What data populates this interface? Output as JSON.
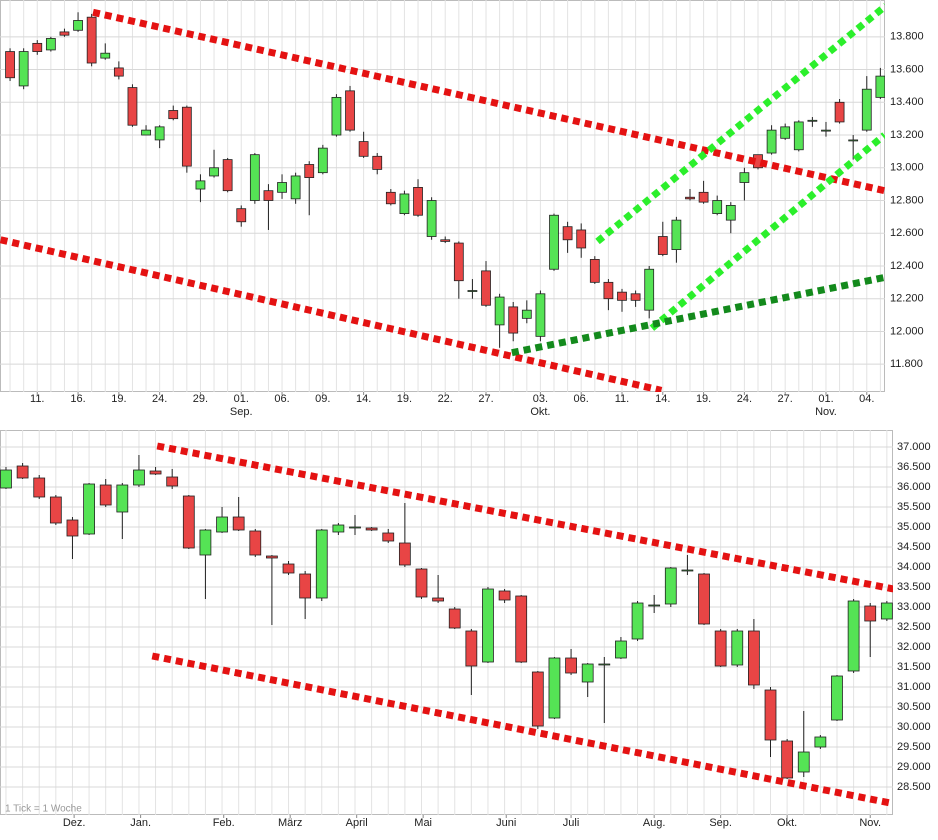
{
  "chart_data": [
    {
      "type": "candlestick",
      "up_color": "#55e355",
      "down_color": "#e84545",
      "open": [
        13710,
        13500,
        13760,
        13720,
        13830,
        13840,
        13920,
        13670,
        13610,
        13490,
        13200,
        13170,
        13350,
        13370,
        12870,
        12950,
        13050,
        12750,
        12800,
        12860,
        12850,
        12810,
        13020,
        12970,
        13200,
        13470,
        13160,
        13070,
        12850,
        12720,
        12880,
        12580,
        12560,
        12540,
        12250,
        12370,
        12040,
        12150,
        12080,
        11970,
        12380,
        12640,
        12620,
        12440,
        12300,
        12240,
        12230,
        12130,
        12580,
        12500,
        12820,
        12850,
        12720,
        12680,
        12910,
        13080,
        13090,
        13180,
        13110,
        13290,
        13230,
        13400,
        13170,
        13230,
        13430
      ],
      "high": [
        13730,
        13730,
        13780,
        13800,
        13850,
        13950,
        13940,
        13760,
        13650,
        13510,
        13260,
        13260,
        13380,
        13380,
        12960,
        13110,
        13060,
        12770,
        13090,
        12900,
        12960,
        12970,
        13040,
        13140,
        13450,
        13500,
        13220,
        13090,
        12870,
        12860,
        12930,
        12820,
        12580,
        12550,
        12320,
        12430,
        12230,
        12180,
        12190,
        12250,
        12720,
        12670,
        12660,
        12460,
        12320,
        12260,
        12250,
        12400,
        12670,
        12700,
        12870,
        12920,
        12830,
        12790,
        13000,
        13080,
        13260,
        13270,
        13290,
        13310,
        13280,
        13420,
        13200,
        13560,
        13610
      ],
      "low": [
        13530,
        13480,
        13690,
        13710,
        13800,
        13830,
        13620,
        13660,
        13540,
        13250,
        13200,
        13120,
        13290,
        12970,
        12790,
        12940,
        12850,
        12640,
        12780,
        12620,
        12810,
        12780,
        12710,
        12960,
        13190,
        13220,
        13060,
        12960,
        12770,
        12710,
        12700,
        12560,
        12540,
        12200,
        12200,
        12150,
        11900,
        11940,
        12050,
        11940,
        12370,
        12480,
        12450,
        12290,
        12130,
        12120,
        12150,
        12080,
        12460,
        12420,
        12800,
        12780,
        12710,
        12600,
        12800,
        12990,
        13080,
        13170,
        13100,
        13250,
        13190,
        13270,
        13050,
        13220,
        13420
      ],
      "close": [
        13550,
        13710,
        13710,
        13790,
        13810,
        13900,
        13640,
        13700,
        13560,
        13260,
        13230,
        13250,
        13300,
        13010,
        12920,
        13000,
        12860,
        12670,
        13080,
        12800,
        12910,
        12950,
        12940,
        13120,
        13430,
        13230,
        13070,
        12990,
        12780,
        12840,
        12710,
        12800,
        12550,
        12310,
        12250,
        12160,
        12210,
        11990,
        12130,
        12230,
        12710,
        12560,
        12510,
        12300,
        12200,
        12190,
        12190,
        12380,
        12470,
        12680,
        12810,
        12790,
        12800,
        12770,
        12970,
        13000,
        13230,
        13250,
        13280,
        13290,
        13230,
        13280,
        13170,
        13480,
        13560
      ],
      "xlim": [
        -0.74,
        64.34
      ],
      "ylim": [
        11630,
        14025
      ],
      "yticks": [
        {
          "value": 11800,
          "label": "11.800"
        },
        {
          "value": 12000,
          "label": "12.000"
        },
        {
          "value": 12200,
          "label": "12.200"
        },
        {
          "value": 12400,
          "label": "12.400"
        },
        {
          "value": 12600,
          "label": "12.600"
        },
        {
          "value": 12800,
          "label": "12.800"
        },
        {
          "value": 13000,
          "label": "13.000"
        },
        {
          "value": 13200,
          "label": "13.200"
        },
        {
          "value": 13400,
          "label": "13.400"
        },
        {
          "value": 13600,
          "label": "13.600"
        },
        {
          "value": 13800,
          "label": "13.800"
        }
      ],
      "xticks": [
        {
          "value": 2,
          "label": "11."
        },
        {
          "value": 5,
          "label": "16."
        },
        {
          "value": 8,
          "label": "19."
        },
        {
          "value": 11,
          "label": "24."
        },
        {
          "value": 14,
          "label": "29."
        },
        {
          "value": 17,
          "label": "01."
        },
        {
          "value": 20,
          "label": "06."
        },
        {
          "value": 23,
          "label": "09."
        },
        {
          "value": 26,
          "label": "14."
        },
        {
          "value": 29,
          "label": "19."
        },
        {
          "value": 32,
          "label": "22."
        },
        {
          "value": 35,
          "label": "27."
        },
        {
          "value": 39,
          "label": "03."
        },
        {
          "value": 42,
          "label": "06."
        },
        {
          "value": 45,
          "label": "11."
        },
        {
          "value": 48,
          "label": "14."
        },
        {
          "value": 51,
          "label": "19."
        },
        {
          "value": 54,
          "label": "24."
        },
        {
          "value": 57,
          "label": "27."
        },
        {
          "value": 60,
          "label": "01."
        },
        {
          "value": 63,
          "label": "04."
        }
      ],
      "months": [
        {
          "value": 17,
          "label": "Sep."
        },
        {
          "value": 39,
          "label": "Okt."
        },
        {
          "value": 60,
          "label": "Nov."
        }
      ],
      "trendlines": [
        {
          "color": "#e41212",
          "x": [
            6.1,
            64.3
          ],
          "y": [
            13950,
            12860
          ]
        },
        {
          "color": "#e41212",
          "x": [
            -0.7,
            47.9
          ],
          "y": [
            12560,
            11640
          ]
        },
        {
          "color": "#2bef2b",
          "x": [
            43.2,
            64.4
          ],
          "y": [
            12550,
            13990
          ]
        },
        {
          "color": "#2bef2b",
          "x": [
            47.2,
            64.3
          ],
          "y": [
            12020,
            13200
          ]
        },
        {
          "color": "#138a1c",
          "x": [
            36.9,
            64.3
          ],
          "y": [
            11870,
            12330
          ]
        }
      ]
    },
    {
      "type": "candlestick",
      "up_color": "#55e355",
      "down_color": "#e84545",
      "open": [
        35975,
        36525,
        36225,
        35750,
        35175,
        34825,
        36050,
        35375,
        36050,
        36400,
        36250,
        35775,
        34300,
        34875,
        35250,
        34900,
        34275,
        34075,
        33825,
        33225,
        34875,
        35000,
        34975,
        34850,
        34600,
        33950,
        33225,
        32950,
        32400,
        31625,
        33400,
        33275,
        31375,
        30225,
        31725,
        31125,
        31575,
        31725,
        32200,
        33050,
        33075,
        33925,
        33825,
        32400,
        31550,
        32400,
        30925,
        29650,
        28875,
        29500,
        30175,
        31400,
        33025,
        32700
      ],
      "high": [
        36500,
        36600,
        36300,
        35800,
        35250,
        36100,
        36200,
        36100,
        36800,
        36500,
        36450,
        35800,
        34950,
        35500,
        35750,
        34950,
        34300,
        34150,
        33900,
        34950,
        35100,
        35300,
        35000,
        34950,
        35600,
        33975,
        33800,
        33000,
        32450,
        33500,
        33450,
        33300,
        31400,
        31750,
        31950,
        31600,
        31750,
        32250,
        33150,
        33300,
        34000,
        34300,
        33850,
        32450,
        32450,
        32700,
        31000,
        29700,
        30400,
        29800,
        31300,
        33200,
        33100,
        33150
      ],
      "low": [
        35950,
        36200,
        35700,
        35050,
        34200,
        34800,
        35500,
        34700,
        36000,
        36300,
        35950,
        34450,
        33200,
        34850,
        34900,
        34250,
        32550,
        33800,
        32700,
        33150,
        34800,
        34800,
        34900,
        34600,
        34000,
        33200,
        33100,
        32450,
        30800,
        31600,
        33100,
        31600,
        29950,
        30200,
        31300,
        30750,
        30100,
        31700,
        32150,
        32850,
        33000,
        33800,
        32550,
        31500,
        31500,
        30950,
        29250,
        28700,
        28750,
        29450,
        30150,
        31350,
        31750,
        32650
      ],
      "close": [
        36425,
        36225,
        35750,
        35100,
        34775,
        36075,
        35550,
        36050,
        36425,
        36325,
        36025,
        34475,
        34925,
        35250,
        34925,
        34300,
        34225,
        33850,
        33225,
        34925,
        35050,
        35000,
        34925,
        34650,
        34050,
        33250,
        33150,
        32475,
        31525,
        33450,
        33175,
        31625,
        30025,
        31725,
        31350,
        31575,
        31575,
        32150,
        33100,
        33050,
        33975,
        33925,
        32575,
        31525,
        32400,
        31050,
        29675,
        28725,
        29375,
        29750,
        31275,
        33150,
        32650,
        33100
      ],
      "xlim": [
        -0.36,
        53.37
      ],
      "ylim": [
        27800,
        37425
      ],
      "yticks": [
        {
          "value": 28500,
          "label": "28.500"
        },
        {
          "value": 29000,
          "label": "29.000"
        },
        {
          "value": 29500,
          "label": "29.500"
        },
        {
          "value": 30000,
          "label": "30.000"
        },
        {
          "value": 30500,
          "label": "30.500"
        },
        {
          "value": 31000,
          "label": "31.000"
        },
        {
          "value": 31500,
          "label": "31.500"
        },
        {
          "value": 32000,
          "label": "32.000"
        },
        {
          "value": 32500,
          "label": "32.500"
        },
        {
          "value": 33000,
          "label": "33.000"
        },
        {
          "value": 33500,
          "label": "33.500"
        },
        {
          "value": 34000,
          "label": "34.000"
        },
        {
          "value": 34500,
          "label": "34.500"
        },
        {
          "value": 35000,
          "label": "35.000"
        },
        {
          "value": 35500,
          "label": "35.500"
        },
        {
          "value": 36000,
          "label": "36.000"
        },
        {
          "value": 36500,
          "label": "36.500"
        },
        {
          "value": 37000,
          "label": "37.000"
        }
      ],
      "xticks": [
        {
          "value": 4.1,
          "label": "Dez."
        },
        {
          "value": 8.1,
          "label": "Jan."
        },
        {
          "value": 13.1,
          "label": "Feb."
        },
        {
          "value": 17.1,
          "label": "März"
        },
        {
          "value": 21.1,
          "label": "April"
        },
        {
          "value": 25.1,
          "label": "Mai"
        },
        {
          "value": 30.1,
          "label": "Juni"
        },
        {
          "value": 34,
          "label": "Juli"
        },
        {
          "value": 39,
          "label": "Aug."
        },
        {
          "value": 43,
          "label": "Sep."
        },
        {
          "value": 47,
          "label": "Okt."
        },
        {
          "value": 52,
          "label": "Nov."
        }
      ],
      "note": "1 Tick = 1 Woche",
      "trendlines": [
        {
          "color": "#e41212",
          "x": [
            9.1,
            53.4
          ],
          "y": [
            37025,
            33450
          ]
        },
        {
          "color": "#e41212",
          "x": [
            8.8,
            53.2
          ],
          "y": [
            31775,
            28100
          ]
        }
      ]
    }
  ]
}
